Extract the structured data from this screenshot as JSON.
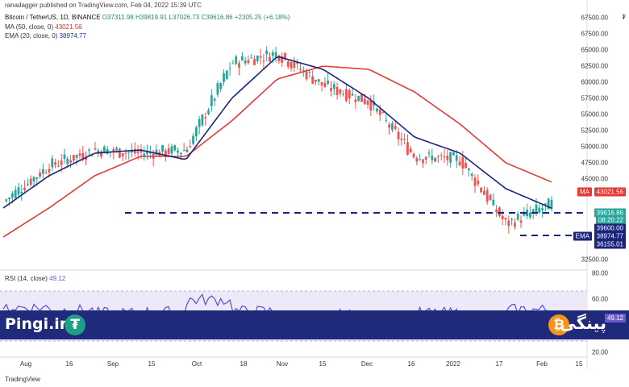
{
  "credit": "ranadagger published on TradingView.com, Feb 04, 2022 15:39 UTC",
  "legend": {
    "symbol": "Bitcoin / TetherUS, 1D, BINANCE",
    "open": "O37311.98",
    "high": "H39819.91",
    "low": "L37026.73",
    "close": "C39616.86",
    "change": "+2305.25 (+6.18%)",
    "ma_label": "MA (50, close, 0)",
    "ma_value": "43021.56",
    "ema_label": "EMA (20, close, 0)",
    "ema_value": "38974.77"
  },
  "rsi_legend": {
    "label": "RSI (14, close)",
    "value": "49.12"
  },
  "currency_mark": "₮",
  "price_ticks": [
    "67500.00",
    "65000.00",
    "62500.00",
    "60000.00",
    "57500.00",
    "55000.00",
    "52500.00",
    "50000.00",
    "47500.00",
    "45000.00",
    "32500.00"
  ],
  "rsi_ticks": [
    "80.00",
    "60.00",
    "20.00"
  ],
  "tags": {
    "ma_label": "MA",
    "ma_value": "43021.56",
    "price": "39616.86",
    "countdown": "08:20:22",
    "level": "39600.00",
    "ema_label": "EMA",
    "ema_value": "38974.77",
    "support": "36155.01",
    "rsi_value": "49.12"
  },
  "x_labels": [
    "Aug",
    "16",
    "Sep",
    "15",
    "Oct",
    "18",
    "Nov",
    "15",
    "Dec",
    "16",
    "2022",
    "17",
    "Feb",
    "15"
  ],
  "branding": {
    "left": "Pingi.ir",
    "right": "پینگی",
    "tether_glyph": "₮",
    "btc_glyph": "₿"
  },
  "footer": "TradingView",
  "colors": {
    "up": "#26a69a",
    "down": "#ef5350",
    "ma": "#e53935",
    "ema": "#1a237e",
    "rsi": "#6a5acd",
    "banner": "#1f2a7a"
  },
  "chart_data": {
    "type": "candlestick",
    "title": "Bitcoin / TetherUS, 1D, BINANCE",
    "series": [
      {
        "name": "BTC/USDT (approx close)",
        "x": [
          "Aug",
          "16",
          "Sep",
          "15",
          "Oct",
          "18",
          "Nov",
          "15",
          "Dec",
          "16",
          "2022",
          "17",
          "Feb"
        ],
        "values": [
          40000,
          45500,
          48000,
          47500,
          48000,
          61500,
          63000,
          58000,
          55500,
          47000,
          46500,
          36500,
          39617
        ]
      },
      {
        "name": "MA (50, close, 0)",
        "values": [
          34500,
          39000,
          44000,
          47000,
          47000,
          52500,
          59000,
          61000,
          60500,
          57000,
          52000,
          46000,
          43022
        ]
      },
      {
        "name": "EMA (20, close, 0)",
        "values": [
          39000,
          44000,
          47500,
          48000,
          46500,
          56000,
          62500,
          60500,
          56000,
          50000,
          47500,
          42000,
          38975
        ]
      }
    ],
    "ylim": [
      30000,
      70000
    ],
    "horizontal_lines": [
      39600.0,
      36155.01
    ],
    "rsi": {
      "name": "RSI (14, close)",
      "value": 49.12,
      "ylim": [
        0,
        100
      ]
    }
  }
}
